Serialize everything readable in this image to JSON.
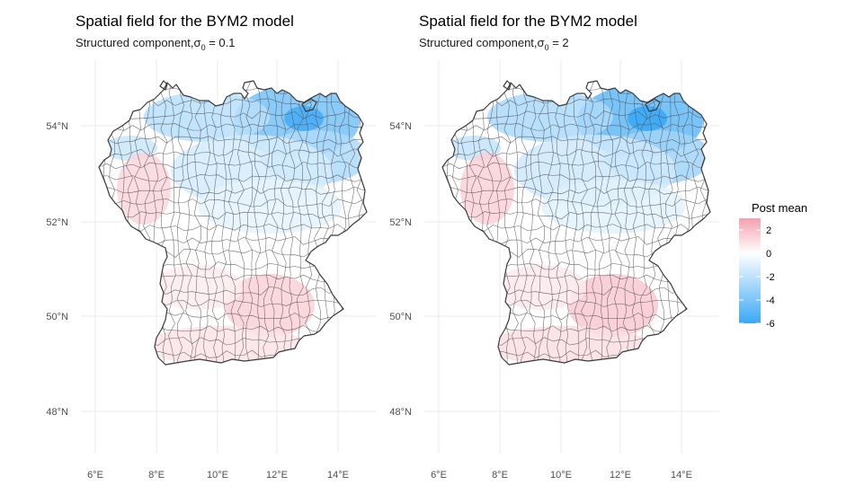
{
  "legend": {
    "title": "Post mean",
    "ticks": [
      "2",
      "0",
      "-2",
      "-4",
      "-6"
    ],
    "tick_values": [
      2,
      0,
      -2,
      -4,
      -6
    ],
    "range": [
      -6,
      3
    ],
    "colors": {
      "high": "#f4a0b0",
      "mid": "#ffffff",
      "low": "#3aa8f5"
    }
  },
  "panels": [
    {
      "title": "Spatial field for the BYM2 model",
      "subtitle_prefix": "Structured component,",
      "sigma_symbol": "σ",
      "sigma_sub": "0",
      "sigma_eq": " = 0.1",
      "x_ticks": [
        "6°E",
        "8°E",
        "10°E",
        "12°E",
        "14°E"
      ],
      "y_ticks": [
        "54°N",
        "52°N",
        "50°N",
        "48°N"
      ]
    },
    {
      "title": "Spatial field for the BYM2 model",
      "subtitle_prefix": "Structured component,",
      "sigma_symbol": "σ",
      "sigma_sub": "0",
      "sigma_eq": " = 2",
      "x_ticks": [
        "6°E",
        "8°E",
        "10°E",
        "12°E",
        "14°E"
      ],
      "y_ticks": [
        "54°N",
        "52°N",
        "50°N",
        "48°N"
      ]
    }
  ]
}
